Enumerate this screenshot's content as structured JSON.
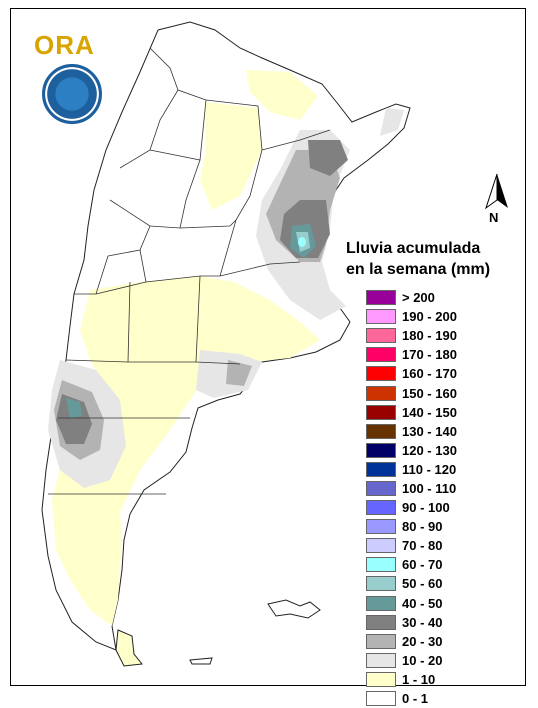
{
  "logo": {
    "text": "ORA"
  },
  "seal": {
    "name": "smn-seal"
  },
  "legend": {
    "title_line1": "Lluvia acumulada",
    "title_line2": "en la semana (mm)",
    "items": [
      {
        "label": "> 200",
        "color": "#990099"
      },
      {
        "label": "190 - 200",
        "color": "#ff99ff"
      },
      {
        "label": "180 - 190",
        "color": "#ff6699"
      },
      {
        "label": "170 - 180",
        "color": "#ff0066"
      },
      {
        "label": "160 - 170",
        "color": "#ff0000"
      },
      {
        "label": "150 - 160",
        "color": "#cc3300"
      },
      {
        "label": "140 - 150",
        "color": "#990000"
      },
      {
        "label": "130 - 140",
        "color": "#663300"
      },
      {
        "label": "120 - 130",
        "color": "#000066"
      },
      {
        "label": "110 - 120",
        "color": "#003399"
      },
      {
        "label": "100 - 110",
        "color": "#6666cc"
      },
      {
        "label": "90 - 100",
        "color": "#6666ff"
      },
      {
        "label": "80 - 90",
        "color": "#9999ff"
      },
      {
        "label": "70 - 80",
        "color": "#ccccff"
      },
      {
        "label": "60 - 70",
        "color": "#99ffff"
      },
      {
        "label": "50 - 60",
        "color": "#99cccc"
      },
      {
        "label": "40 - 50",
        "color": "#669999"
      },
      {
        "label": "30 - 40",
        "color": "#808080"
      },
      {
        "label": "20 - 30",
        "color": "#b3b3b3"
      },
      {
        "label": "10 - 20",
        "color": "#e6e6e6"
      },
      {
        "label": "1 - 10",
        "color": "#ffffcc"
      },
      {
        "label": "0 - 1",
        "color": "#ffffff"
      }
    ]
  },
  "north_arrow": {
    "label": "N"
  }
}
